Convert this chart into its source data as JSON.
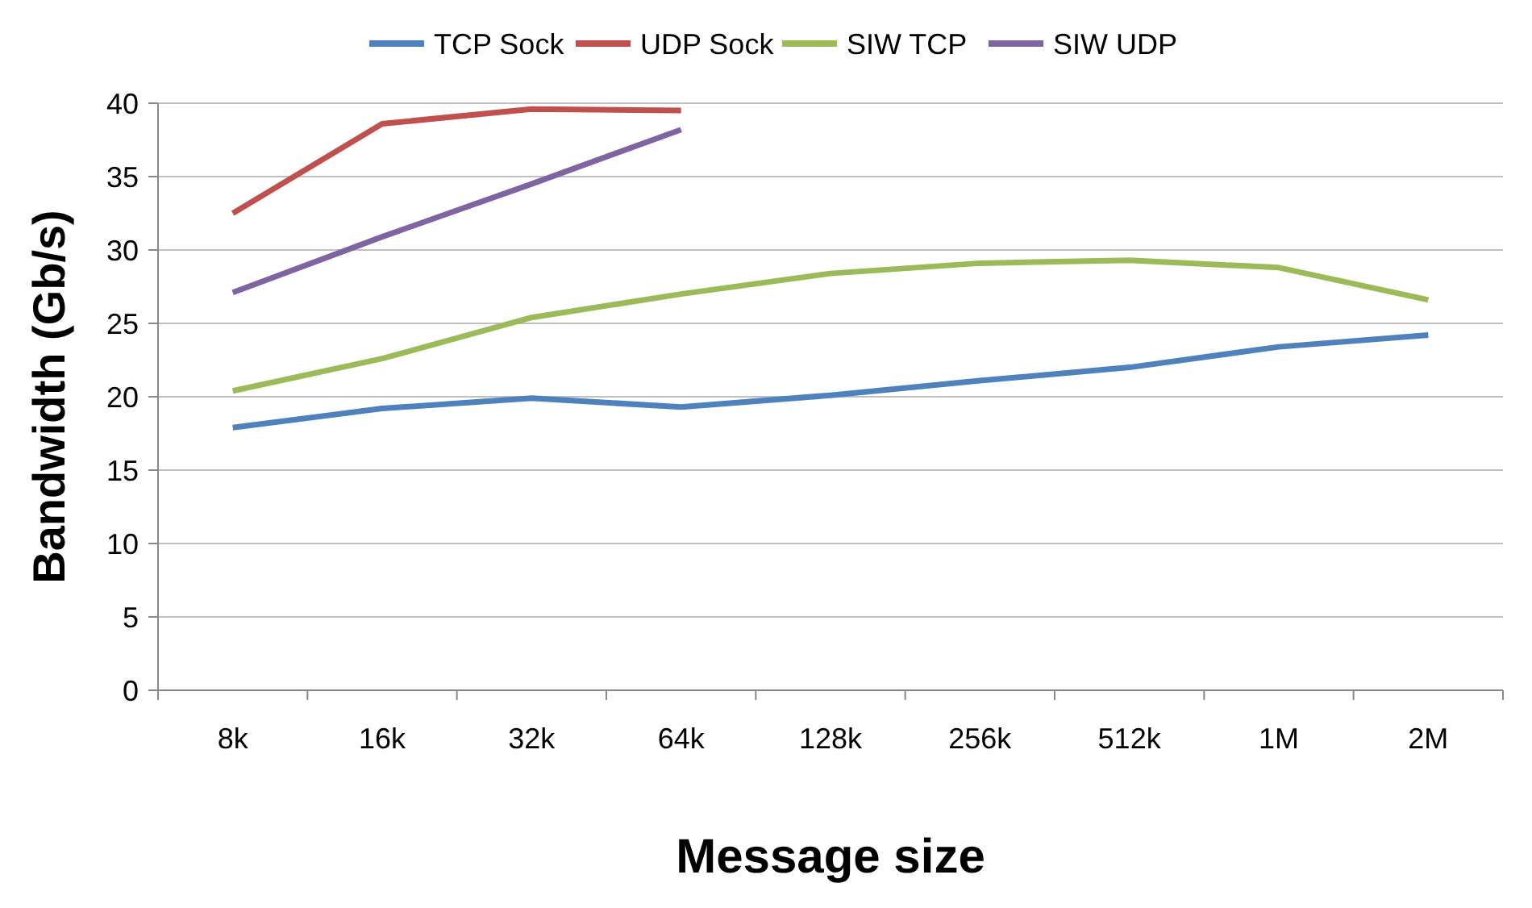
{
  "chart_data": {
    "type": "line",
    "xlabel": "Message size",
    "ylabel": "Bandwidth (Gb/s)",
    "categories": [
      "8k",
      "16k",
      "32k",
      "64k",
      "128k",
      "256k",
      "512k",
      "1M",
      "2M"
    ],
    "ylim": [
      0,
      40
    ],
    "yticks": [
      0,
      5,
      10,
      15,
      20,
      25,
      30,
      35,
      40
    ],
    "grid": "y",
    "legend": "top",
    "marker": "none",
    "line_style": "solid",
    "series": [
      {
        "name": "TCP Sock",
        "color": "#4f81bd",
        "values": [
          17.9,
          19.2,
          19.9,
          19.3,
          20.1,
          21.1,
          22.0,
          23.4,
          24.2
        ]
      },
      {
        "name": "UDP Sock",
        "color": "#c0504d",
        "values": [
          32.5,
          38.6,
          39.6,
          39.5,
          null,
          null,
          null,
          null,
          null
        ]
      },
      {
        "name": "SIW TCP",
        "color": "#9bbb59",
        "values": [
          20.4,
          22.6,
          25.4,
          27.0,
          28.4,
          29.1,
          29.3,
          28.8,
          26.6
        ]
      },
      {
        "name": "SIW UDP",
        "color": "#8064a2",
        "values": [
          27.1,
          30.9,
          34.5,
          38.2,
          null,
          null,
          null,
          null,
          null
        ]
      }
    ]
  }
}
